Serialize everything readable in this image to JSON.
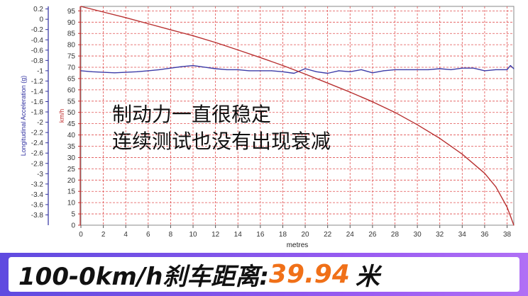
{
  "chart_data": {
    "type": "line",
    "xlabel": "metres",
    "xlim": [
      0,
      38.6
    ],
    "xticks": [
      0,
      2,
      4,
      6,
      8,
      10,
      12,
      14,
      16,
      18,
      20,
      22,
      24,
      26,
      28,
      30,
      32,
      34,
      36,
      38
    ],
    "y_left": {
      "label": "Longitudinal Acceleration (g)",
      "lim": [
        -4.0,
        0.25
      ],
      "ticks": [
        0.2,
        0,
        -0.2,
        -0.4,
        -0.6,
        -0.8,
        -1,
        -1.2,
        -1.4,
        -1.6,
        -1.8,
        -2,
        -2.2,
        -2.4,
        -2.6,
        -2.8,
        -3,
        -3.2,
        -3.4,
        -3.6,
        -3.8
      ],
      "color": "#3030a0"
    },
    "y_right": {
      "label": "km/h",
      "lim": [
        0,
        97
      ],
      "ticks": [
        95,
        90,
        85,
        80,
        75,
        70,
        65,
        60,
        55,
        50,
        45,
        40,
        35,
        30,
        25,
        20,
        15,
        10,
        5,
        0
      ],
      "color": "#c03030"
    },
    "series": [
      {
        "axis": "left",
        "color": "#3c3ca8",
        "x": [
          0,
          1,
          2,
          3,
          4,
          5,
          6,
          7,
          8,
          9,
          10,
          11,
          12,
          13,
          14,
          15,
          16,
          17,
          18,
          19,
          20,
          21,
          22,
          23,
          24,
          25,
          26,
          27,
          28,
          29,
          30,
          31,
          32,
          33,
          34,
          35,
          36,
          37,
          38,
          38.3,
          38.6
        ],
        "values": [
          -1.0,
          -1.02,
          -1.03,
          -1.04,
          -1.03,
          -1.02,
          -1.0,
          -0.98,
          -0.95,
          -0.92,
          -0.9,
          -0.93,
          -0.96,
          -0.98,
          -0.98,
          -1.0,
          -1.0,
          -1.0,
          -1.02,
          -1.05,
          -0.96,
          -1.02,
          -1.05,
          -1.0,
          -1.02,
          -0.98,
          -1.04,
          -1.0,
          -0.98,
          -0.98,
          -0.98,
          -0.98,
          -0.96,
          -0.98,
          -0.95,
          -0.95,
          -1.0,
          -0.98,
          -0.98,
          -0.9,
          -0.96
        ]
      },
      {
        "axis": "right",
        "color": "#b83030",
        "x": [
          0,
          2,
          4,
          6,
          8,
          10,
          12,
          14,
          16,
          18,
          20,
          22,
          24,
          26,
          28,
          30,
          32,
          34,
          36,
          37,
          38,
          38.3,
          38.6
        ],
        "values": [
          97,
          94.5,
          92,
          89.3,
          86.6,
          84,
          81,
          77.7,
          74.3,
          70.8,
          67,
          63,
          59,
          54.7,
          50,
          44.5,
          38.5,
          31.5,
          23,
          17,
          8,
          4,
          0
        ]
      }
    ]
  },
  "annotation": {
    "line1": "制动力一直很稳定",
    "line2": "连续测试也没有出现衰减"
  },
  "banner": {
    "label": "100-0km/h刹车距离:",
    "value": "39.94",
    "unit": "米",
    "bg_color": "#7a52e8",
    "value_color": "#f07018"
  }
}
